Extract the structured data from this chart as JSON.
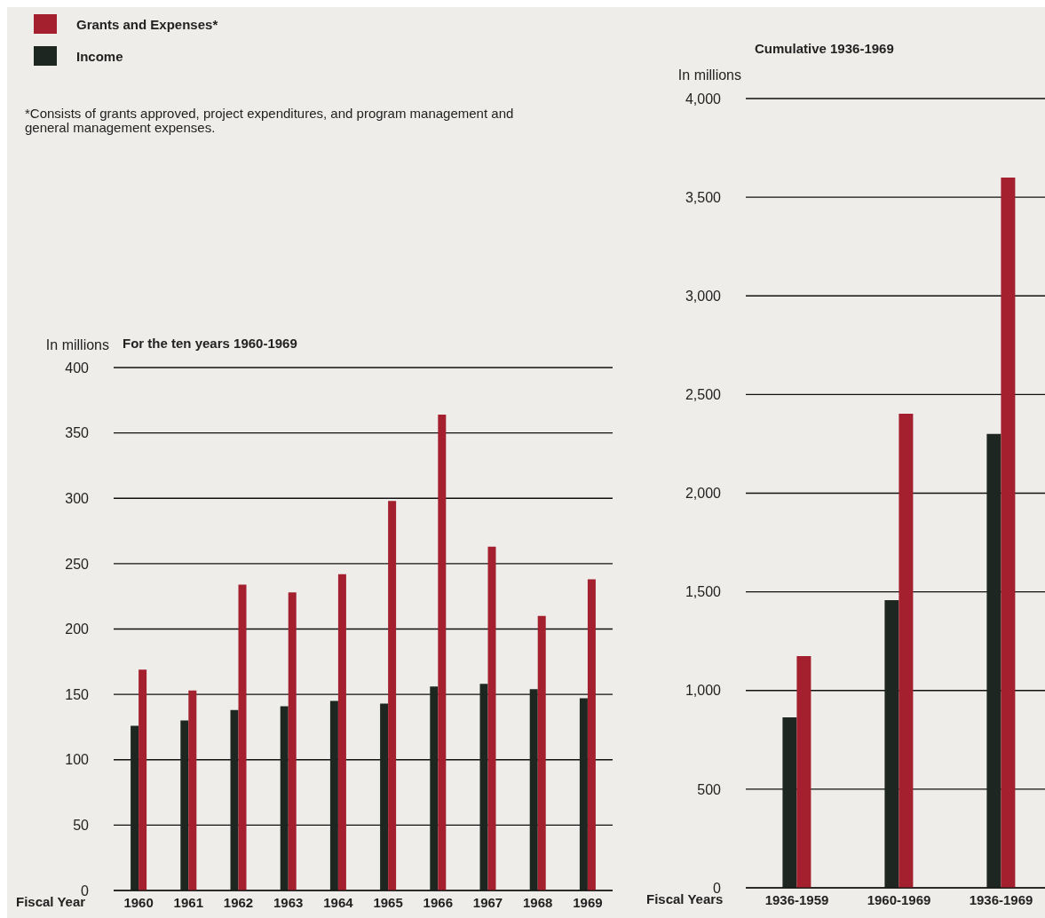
{
  "chart_data": [
    {
      "type": "bar",
      "title": "For the ten years 1960-1969",
      "ylabel": "In millions",
      "xlabel": "Fiscal Year",
      "legend": "top left",
      "grid": "y",
      "annotations": [
        "*Consists of grants approved, project expenditures, and program management and general management expenses."
      ],
      "categories": [
        "1960",
        "1961",
        "1962",
        "1963",
        "1964",
        "1965",
        "1966",
        "1967",
        "1968",
        "1969"
      ],
      "series": [
        {
          "name": "Income",
          "color": "#1d2621",
          "values": [
            126,
            130,
            138,
            141,
            145,
            143,
            156,
            158,
            154,
            147
          ]
        },
        {
          "name": "Grants and Expenses*",
          "color": "#a4202e",
          "values": [
            169,
            153,
            234,
            228,
            242,
            298,
            364,
            263,
            210,
            238
          ]
        }
      ],
      "ylim": [
        0,
        400
      ],
      "yticks": [
        0,
        50,
        100,
        150,
        200,
        250,
        300,
        350,
        400
      ]
    },
    {
      "type": "bar",
      "title": "Cumulative 1936-1969",
      "ylabel": "In millions",
      "xlabel": "Fiscal Years",
      "grid": "y",
      "categories": [
        "1936-1959",
        "1960-1969",
        "1936-1969"
      ],
      "series": [
        {
          "color": "#1d2621",
          "values": [
            864,
            1458,
            2300
          ]
        },
        {
          "color": "#a4202e",
          "values": [
            1174,
            2403,
            3600
          ]
        }
      ],
      "ylim": [
        0,
        4000
      ],
      "yticks": [
        0,
        500,
        {
          "value": 1000,
          "label": "1,000"
        },
        {
          "value": 1500,
          "label": "1,500"
        },
        {
          "value": 2000,
          "label": "2,000"
        },
        {
          "value": 2500,
          "label": "2,500"
        },
        {
          "value": 3000,
          "label": "3,000"
        },
        {
          "value": 3500,
          "label": "3,500"
        },
        {
          "value": 4000,
          "label": "4,000"
        }
      ]
    }
  ]
}
